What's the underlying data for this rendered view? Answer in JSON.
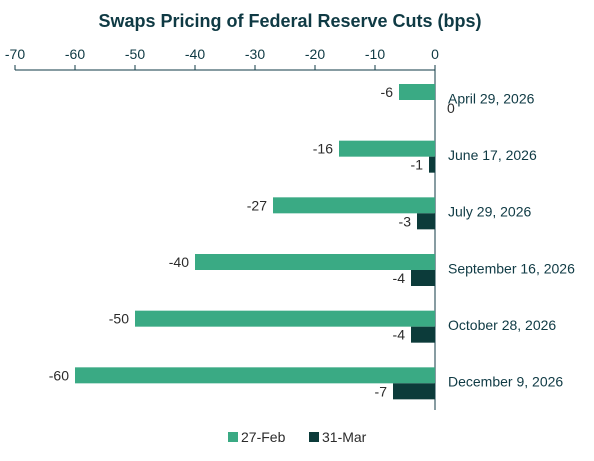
{
  "chart_data": {
    "type": "bar",
    "orientation": "horizontal",
    "title": "Swaps Pricing of Federal Reserve Cuts (bps)",
    "xlabel": "",
    "ylabel": "",
    "xlim": [
      -70,
      0
    ],
    "xticks": [
      -70,
      -60,
      -50,
      -40,
      -30,
      -20,
      -10,
      0
    ],
    "x_axis_position": "top",
    "categories": [
      "April 29, 2026",
      "June 17, 2026",
      "July 29, 2026",
      "September 16, 2026",
      "October 28, 2026",
      "December 9, 2026"
    ],
    "series": [
      {
        "name": "27-Feb",
        "color": "#3aaa84",
        "values": [
          -6,
          -16,
          -27,
          -40,
          -50,
          -60
        ]
      },
      {
        "name": "31-Mar",
        "color": "#0c3b3a",
        "values": [
          0,
          -1,
          -3,
          -4,
          -4,
          -7
        ]
      }
    ],
    "grid": false,
    "legend": "bottom-center"
  }
}
